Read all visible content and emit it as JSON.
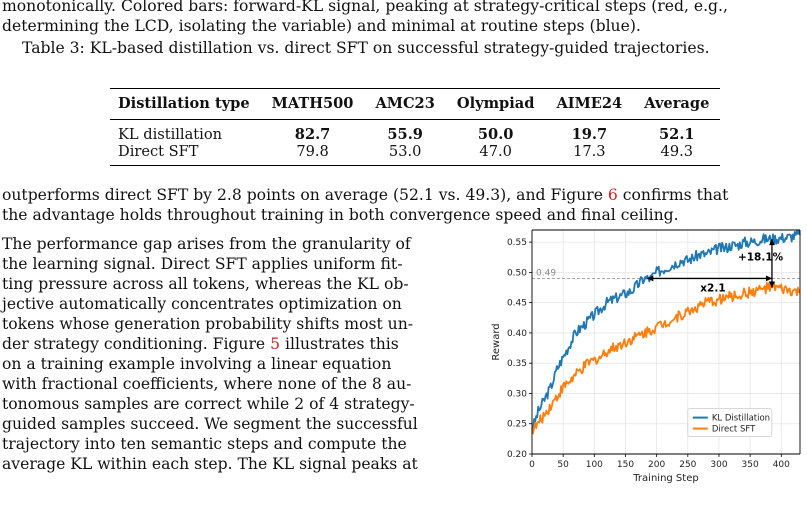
{
  "paragraph_top": [
    "monotonically. Colored bars: forward-KL signal, peaking at strategy-critical steps (red, e.g.,",
    "determining the LCD, isolating the variable) and minimal at routine steps (blue)."
  ],
  "table": {
    "caption": "Table 3: KL-based distillation vs. direct SFT on successful strategy-guided trajectories.",
    "headers": [
      "Distillation type",
      "MATH500",
      "AMC23",
      "Olympiad",
      "AIME24",
      "Average"
    ],
    "rows": [
      {
        "cells": [
          "KL distillation",
          "82.7",
          "55.9",
          "50.0",
          "19.7",
          "52.1"
        ],
        "bold": true
      },
      {
        "cells": [
          "Direct SFT",
          "79.8",
          "53.0",
          "47.0",
          "17.3",
          "49.3"
        ],
        "bold": false
      }
    ]
  },
  "paragraph_mid": {
    "line1": "outperforms direct SFT by 2.8 points on average (52.1 vs. 49.3), and Figure ",
    "line1_ref": "6",
    "line1_end": " confirms that",
    "line2": "the advantage holds throughout training in both convergence speed and final ceiling."
  },
  "paragraph_main": {
    "lines": [
      "The performance gap arises from the granularity of",
      "the learning signal.  Direct SFT applies uniform fit-",
      "ting pressure across all tokens, whereas the KL ob-",
      "jective automatically concentrates optimization on",
      "tokens whose generation probability shifts most un-",
      "der strategy conditioning.  Figure ",
      "with fractional coefficients, where none of the 8 au-",
      "tonomous samples are correct while 2 of 4 strategy-",
      "guided samples succeed.  We segment the successful",
      "trajectory into ten semantic steps and compute the",
      "average KL within each step.  The KL signal peaks at"
    ],
    "fig_ref": "5",
    "line6_end": " illustrates this",
    "line7": "on a training example involving a linear equation"
  },
  "chart_data": {
    "type": "line",
    "xlabel": "Training Step",
    "ylabel": "Reward",
    "xlim": [
      0,
      430
    ],
    "ylim": [
      0.2,
      0.57
    ],
    "xticks": [
      0,
      50,
      100,
      150,
      200,
      250,
      300,
      350,
      400
    ],
    "yticks": [
      "0.20",
      "0.25",
      "0.30",
      "0.35",
      "0.40",
      "0.45",
      "0.50",
      "0.55"
    ],
    "reference_line": {
      "y": 0.49,
      "label": "0.49"
    },
    "annotations": {
      "speedup": "x2.1",
      "gain": "+18.1%"
    },
    "legend_position": "lower-right",
    "grid": true,
    "series": [
      {
        "name": "KL Distillation",
        "color": "#1f77b4",
        "x": [
          0,
          10,
          20,
          30,
          40,
          50,
          60,
          70,
          80,
          90,
          100,
          110,
          120,
          130,
          140,
          150,
          160,
          170,
          180,
          190,
          200,
          210,
          220,
          230,
          240,
          250,
          260,
          270,
          280,
          290,
          300,
          310,
          320,
          330,
          340,
          350,
          360,
          370,
          380,
          390,
          400,
          410,
          420,
          430
        ],
        "y": [
          0.24,
          0.27,
          0.29,
          0.31,
          0.34,
          0.36,
          0.38,
          0.4,
          0.41,
          0.42,
          0.43,
          0.44,
          0.45,
          0.455,
          0.46,
          0.465,
          0.47,
          0.48,
          0.49,
          0.49,
          0.5,
          0.505,
          0.51,
          0.515,
          0.52,
          0.52,
          0.525,
          0.53,
          0.53,
          0.535,
          0.54,
          0.54,
          0.545,
          0.545,
          0.55,
          0.55,
          0.552,
          0.555,
          0.555,
          0.556,
          0.557,
          0.558,
          0.56,
          0.562
        ]
      },
      {
        "name": "Direct SFT",
        "color": "#ff7f0e",
        "x": [
          0,
          10,
          20,
          30,
          40,
          50,
          60,
          70,
          80,
          90,
          100,
          110,
          120,
          130,
          140,
          150,
          160,
          170,
          180,
          190,
          200,
          210,
          220,
          230,
          240,
          250,
          260,
          270,
          280,
          290,
          300,
          310,
          320,
          330,
          340,
          350,
          360,
          370,
          380,
          390,
          400,
          410,
          420,
          430
        ],
        "y": [
          0.24,
          0.25,
          0.265,
          0.28,
          0.295,
          0.31,
          0.32,
          0.33,
          0.34,
          0.35,
          0.355,
          0.36,
          0.37,
          0.375,
          0.38,
          0.385,
          0.39,
          0.395,
          0.4,
          0.405,
          0.41,
          0.415,
          0.42,
          0.425,
          0.43,
          0.435,
          0.44,
          0.445,
          0.45,
          0.452,
          0.455,
          0.458,
          0.46,
          0.462,
          0.465,
          0.467,
          0.47,
          0.472,
          0.475,
          0.475,
          0.472,
          0.47,
          0.468,
          0.466
        ]
      }
    ]
  }
}
